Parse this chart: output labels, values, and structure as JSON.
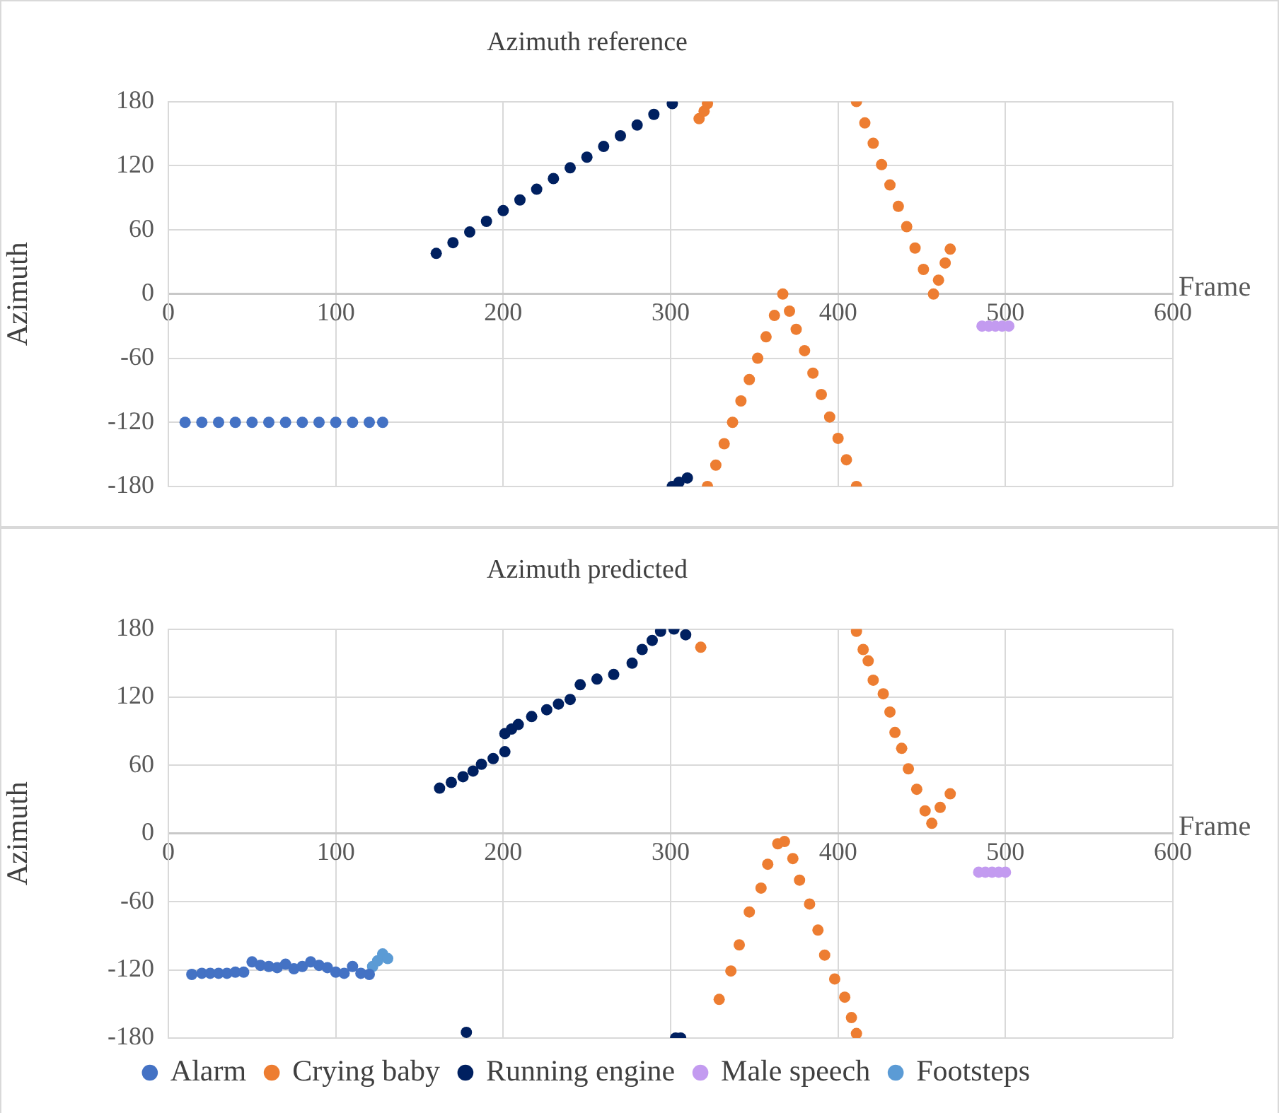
{
  "chart_data": [
    {
      "type": "scatter",
      "title": "Azimuth reference",
      "xlabel": "Frame",
      "ylabel": "Azimuth",
      "xlim": [
        0,
        600
      ],
      "xticks": [
        0,
        100,
        200,
        300,
        400,
        500,
        600
      ],
      "ylim": [
        -180,
        180
      ],
      "yticks": [
        -180,
        -120,
        -60,
        0,
        60,
        120,
        180
      ],
      "grid": true,
      "marker": "circle",
      "series": [
        {
          "color": "#4472c4",
          "x": [
            10,
            20,
            30,
            40,
            50,
            60,
            70,
            80,
            90,
            100,
            110,
            120,
            128
          ],
          "values": [
            -120,
            -120,
            -120,
            -120,
            -120,
            -120,
            -120,
            -120,
            -120,
            -120,
            -120,
            -120,
            -120
          ]
        },
        {
          "color": "#ed7d31",
          "x": [
            317,
            320,
            322,
            322,
            327,
            332,
            337,
            342,
            347,
            352,
            357,
            362,
            367,
            371,
            375,
            380,
            385,
            390,
            395,
            400,
            405,
            411,
            411,
            416,
            421,
            426,
            431,
            436,
            441,
            446,
            451,
            457,
            460,
            464,
            467
          ],
          "values": [
            164,
            171,
            178,
            -180,
            -160,
            -140,
            -120,
            -100,
            -80,
            -60,
            -40,
            -20,
            0,
            -16,
            -33,
            -53,
            -74,
            -94,
            -115,
            -135,
            -155,
            -180,
            180,
            160,
            141,
            121,
            102,
            82,
            63,
            43,
            23,
            0,
            13,
            29,
            42
          ]
        },
        {
          "color": "#002060",
          "x": [
            160,
            170,
            180,
            190,
            200,
            210,
            220,
            230,
            240,
            250,
            260,
            270,
            280,
            290,
            301,
            301,
            305,
            310
          ],
          "values": [
            38,
            48,
            58,
            68,
            78,
            88,
            98,
            108,
            118,
            128,
            138,
            148,
            158,
            168,
            178,
            -180,
            -176,
            -172
          ]
        },
        {
          "color": "#c39bf0",
          "x": [
            486,
            490,
            494,
            498,
            502
          ],
          "values": [
            -30,
            -30,
            -30,
            -30,
            -30
          ]
        }
      ]
    },
    {
      "type": "scatter",
      "title": "Azimuth predicted",
      "xlabel": "Frame",
      "ylabel": "Azimuth",
      "xlim": [
        0,
        600
      ],
      "xticks": [
        0,
        100,
        200,
        300,
        400,
        500,
        600
      ],
      "ylim": [
        -180,
        180
      ],
      "yticks": [
        -180,
        -120,
        -60,
        0,
        60,
        120,
        180
      ],
      "grid": true,
      "marker": "circle",
      "legend": "bottom",
      "series": [
        {
          "name": "Alarm",
          "color": "#4472c4",
          "x": [
            14,
            20,
            25,
            30,
            35,
            40,
            45,
            50,
            55,
            60,
            65,
            70,
            75,
            80,
            85,
            90,
            95,
            100,
            105,
            110,
            115,
            120
          ],
          "values": [
            -124,
            -123,
            -123,
            -123,
            -123,
            -122,
            -122,
            -113,
            -116,
            -117,
            -118,
            -115,
            -119,
            -117,
            -113,
            -116,
            -118,
            -122,
            -123,
            -117,
            -123,
            -124
          ]
        },
        {
          "name": "Crying baby",
          "color": "#ed7d31",
          "x": [
            318,
            329,
            336,
            341,
            347,
            354,
            358,
            364,
            368,
            373,
            377,
            383,
            388,
            392,
            398,
            404,
            408,
            411,
            411,
            415,
            418,
            421,
            427,
            431,
            434,
            438,
            442,
            447,
            452,
            456,
            461,
            467
          ],
          "values": [
            164,
            -146,
            -121,
            -98,
            -69,
            -48,
            -27,
            -9,
            -7,
            -22,
            -41,
            -62,
            -85,
            -107,
            -128,
            -144,
            -162,
            -176,
            178,
            162,
            152,
            135,
            123,
            107,
            89,
            75,
            57,
            39,
            20,
            9,
            23,
            35
          ]
        },
        {
          "name": "Running engine",
          "color": "#002060",
          "x": [
            162,
            169,
            176,
            182,
            187,
            194,
            201,
            201,
            205,
            209,
            217,
            226,
            233,
            240,
            246,
            256,
            266,
            277,
            283,
            289,
            294,
            302,
            309,
            178,
            303,
            306
          ],
          "values": [
            40,
            45,
            50,
            55,
            61,
            66,
            72,
            88,
            92,
            96,
            103,
            109,
            114,
            118,
            131,
            136,
            140,
            150,
            162,
            170,
            178,
            180,
            175,
            -175,
            -180,
            -180
          ]
        },
        {
          "name": "Male speech",
          "color": "#c39bf0",
          "x": [
            484,
            488,
            492,
            496,
            500
          ],
          "values": [
            -34,
            -34,
            -34,
            -34,
            -34
          ]
        },
        {
          "name": "Footsteps",
          "color": "#5b9bd5",
          "x": [
            122,
            125,
            128,
            131
          ],
          "values": [
            -117,
            -112,
            -106,
            -110
          ]
        }
      ]
    }
  ]
}
